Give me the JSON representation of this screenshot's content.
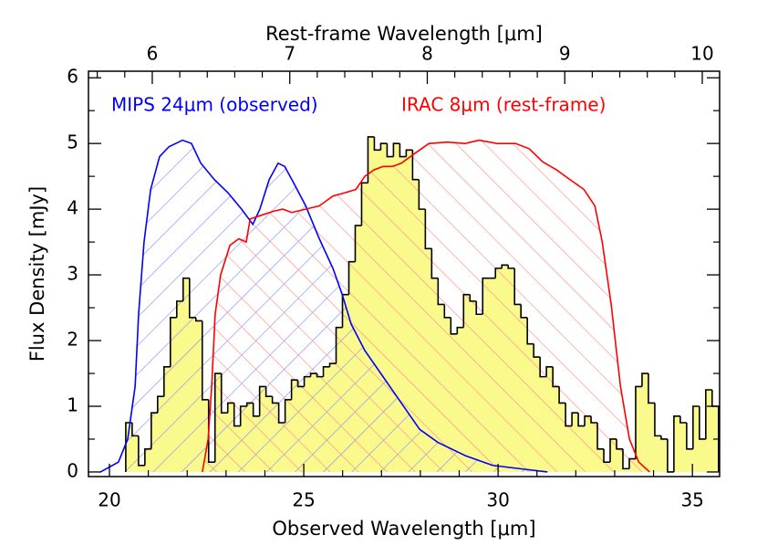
{
  "chart_data": {
    "type": "histogram",
    "xlabel": "Observed Wavelength [μm]",
    "x2label": "Rest-frame Wavelength [μm]",
    "ylabel": "Flux Density [mJy]",
    "xlim": [
      19.46,
      35.7
    ],
    "xticks": [
      20,
      25,
      30,
      35
    ],
    "x2lim": [
      5.536,
      10.126
    ],
    "x2ticks": [
      6,
      7,
      8,
      9,
      10
    ],
    "ylim": [
      -0.07,
      6.1
    ],
    "yticks": [
      0,
      1,
      2,
      3,
      4,
      5,
      6
    ],
    "color": "#fafa8c",
    "edge_color": "#000000",
    "bins": [
      20.42,
      20.584,
      20.748,
      20.912,
      21.076,
      21.24,
      21.404,
      21.568,
      21.732,
      21.896,
      22.06,
      22.224,
      22.388,
      22.552,
      22.716,
      22.88,
      23.044,
      23.208,
      23.372,
      23.536,
      23.7,
      23.864,
      24.028,
      24.192,
      24.356,
      24.52,
      24.684,
      24.848,
      25.012,
      25.176,
      25.34,
      25.504,
      25.668,
      25.832,
      25.996,
      26.16,
      26.324,
      26.488,
      26.652,
      26.816,
      26.98,
      27.144,
      27.308,
      27.472,
      27.636,
      27.8,
      27.964,
      28.128,
      28.292,
      28.456,
      28.62,
      28.784,
      28.948,
      29.112,
      29.276,
      29.44,
      29.604,
      29.768,
      29.932,
      30.096,
      30.26,
      30.424,
      30.588,
      30.752,
      30.916,
      31.08,
      31.244,
      31.408,
      31.572,
      31.736,
      31.9,
      32.064,
      32.228,
      32.392,
      32.556,
      32.72,
      32.884,
      33.048,
      33.212,
      33.376,
      33.54,
      33.704,
      33.868,
      34.032,
      34.196,
      34.36,
      34.524,
      34.688,
      34.852,
      35.016,
      35.18,
      35.344,
      35.508,
      35.672
    ],
    "values": [
      0.75,
      0.55,
      0.1,
      0.35,
      0.9,
      1.15,
      1.6,
      2.35,
      2.6,
      2.95,
      2.35,
      2.3,
      1.1,
      0.15,
      1.5,
      0.9,
      1.05,
      0.7,
      1.0,
      1.05,
      0.85,
      1.3,
      1.15,
      1.05,
      0.75,
      1.1,
      1.4,
      1.3,
      1.45,
      1.5,
      1.45,
      1.6,
      1.65,
      2.2,
      2.7,
      3.2,
      3.75,
      4.4,
      5.1,
      4.9,
      5.0,
      4.8,
      5.0,
      4.8,
      4.9,
      4.45,
      4.0,
      3.4,
      2.95,
      2.55,
      2.35,
      2.1,
      2.2,
      2.7,
      2.6,
      2.4,
      2.95,
      2.95,
      3.1,
      3.15,
      3.1,
      2.55,
      2.35,
      1.95,
      1.75,
      1.45,
      1.6,
      1.3,
      1.05,
      0.7,
      0.9,
      0.7,
      0.85,
      0.75,
      0.35,
      0.15,
      0.5,
      0.35,
      0.05,
      0.2,
      1.3,
      1.5,
      1.05,
      0.55,
      0.5,
      0,
      0.85,
      0.75,
      0.35,
      1.0,
      0.5,
      1.25,
      1.0
    ],
    "series": [
      {
        "name": "MIPS 24μm (observed)",
        "color": "#0000ff",
        "hatch_color": "#8c8cff",
        "hatch": "backslash",
        "x": [
          19.77,
          20.23,
          20.47,
          20.66,
          20.75,
          20.89,
          21.06,
          21.29,
          21.53,
          21.88,
          22.11,
          22.35,
          22.7,
          23.05,
          23.4,
          23.69,
          23.87,
          24.11,
          24.34,
          24.51,
          24.74,
          25.05,
          25.4,
          25.75,
          25.99,
          26.22,
          26.57,
          27.04,
          27.51,
          27.98,
          28.45,
          29.15,
          29.86,
          30.56,
          31.27
        ],
        "values": [
          0,
          0.15,
          0.5,
          1.3,
          2.4,
          3.5,
          4.3,
          4.8,
          4.95,
          5.05,
          5.0,
          4.7,
          4.45,
          4.25,
          4.0,
          3.77,
          4.0,
          4.45,
          4.7,
          4.65,
          4.4,
          4.05,
          3.55,
          3.1,
          2.7,
          2.25,
          1.85,
          1.45,
          1.05,
          0.65,
          0.45,
          0.25,
          0.1,
          0.05,
          0
        ]
      },
      {
        "name": "IRAC 8μm (rest-frame)",
        "color": "#ff0000",
        "hatch_color": "#ff8c8c",
        "hatch": "slash",
        "x": [
          22.39,
          22.54,
          22.63,
          22.72,
          22.86,
          23.1,
          23.33,
          23.52,
          23.62,
          23.87,
          24.23,
          24.46,
          24.69,
          25.05,
          25.4,
          25.75,
          26.06,
          26.34,
          26.57,
          26.81,
          27.04,
          27.28,
          27.51,
          27.86,
          28.22,
          28.69,
          29.15,
          29.51,
          29.98,
          30.45,
          30.8,
          31.15,
          31.5,
          31.85,
          32.21,
          32.49,
          32.68,
          32.91,
          33.15,
          33.38,
          33.62,
          33.9
        ],
        "values": [
          0,
          0.5,
          1.3,
          2.4,
          3.0,
          3.45,
          3.55,
          3.5,
          3.85,
          3.9,
          3.97,
          4.0,
          3.95,
          4.0,
          4.05,
          4.2,
          4.25,
          4.3,
          4.5,
          4.6,
          4.65,
          4.65,
          4.7,
          4.85,
          5.0,
          5.02,
          5.0,
          5.05,
          5.0,
          5.0,
          4.92,
          4.72,
          4.6,
          4.45,
          4.3,
          4.05,
          3.5,
          2.55,
          1.3,
          0.5,
          0.15,
          0
        ]
      }
    ]
  }
}
